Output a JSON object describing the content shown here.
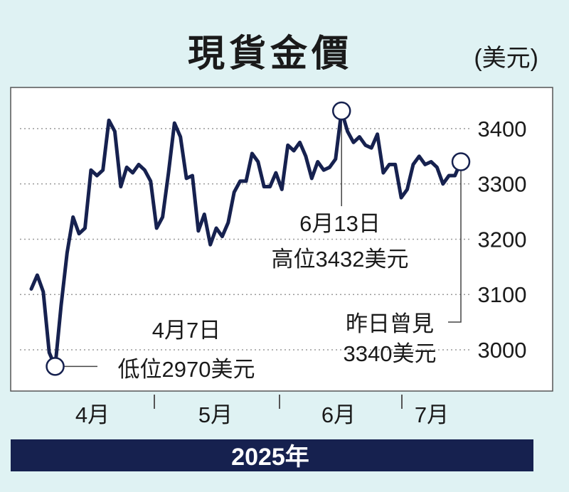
{
  "chart_data": {
    "type": "line",
    "title": "現貨金價",
    "unit": "(美元)",
    "xlabel": "2025年",
    "ylim": [
      2930,
      3470
    ],
    "yticks": [
      3000,
      3100,
      3200,
      3300,
      3400
    ],
    "xticks": [
      "4月",
      "5月",
      "6月",
      "7月"
    ],
    "grid": true,
    "series": [
      {
        "values": [
          3110,
          3135,
          3105,
          2995,
          2970,
          3080,
          3175,
          3240,
          3210,
          3220,
          3325,
          3315,
          3325,
          3415,
          3395,
          3295,
          3330,
          3320,
          3335,
          3325,
          3305,
          3220,
          3240,
          3320,
          3410,
          3385,
          3310,
          3315,
          3215,
          3245,
          3190,
          3220,
          3205,
          3230,
          3285,
          3305,
          3305,
          3355,
          3340,
          3295,
          3295,
          3320,
          3290,
          3370,
          3360,
          3375,
          3350,
          3310,
          3340,
          3325,
          3330,
          3345,
          3432,
          3395,
          3375,
          3385,
          3370,
          3365,
          3390,
          3320,
          3335,
          3335,
          3275,
          3290,
          3335,
          3350,
          3335,
          3340,
          3330,
          3300,
          3315,
          3315,
          3340
        ]
      }
    ],
    "annotations": [
      {
        "date": "4月7日",
        "text": "低位2970美元",
        "value": 2970
      },
      {
        "date": "6月13日",
        "text": "高位3432美元",
        "value": 3432
      },
      {
        "date": "昨日曾見",
        "text": "3340美元",
        "value": 3340
      }
    ]
  },
  "colors": {
    "background": "#dff2f3",
    "plot": "#ffffff",
    "line": "#16214f",
    "band": "#16214f"
  }
}
